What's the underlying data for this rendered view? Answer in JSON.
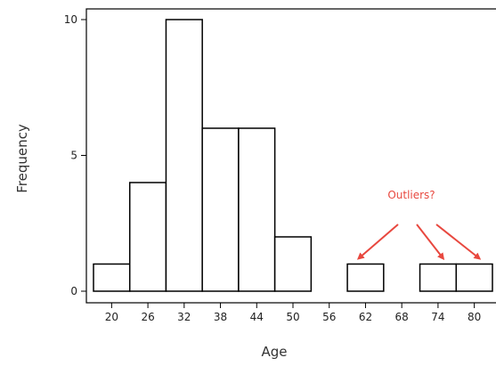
{
  "chart_data": {
    "type": "bar",
    "subtype": "histogram",
    "title": "",
    "xlabel": "Age",
    "ylabel": "Frequency",
    "bins": [
      {
        "start": 17,
        "end": 23,
        "count": 1
      },
      {
        "start": 23,
        "end": 29,
        "count": 4
      },
      {
        "start": 29,
        "end": 35,
        "count": 10
      },
      {
        "start": 35,
        "end": 41,
        "count": 6
      },
      {
        "start": 41,
        "end": 47,
        "count": 6
      },
      {
        "start": 47,
        "end": 53,
        "count": 2
      },
      {
        "start": 53,
        "end": 59,
        "count": 0
      },
      {
        "start": 59,
        "end": 65,
        "count": 1
      },
      {
        "start": 65,
        "end": 71,
        "count": 0
      },
      {
        "start": 71,
        "end": 77,
        "count": 1
      },
      {
        "start": 77,
        "end": 83,
        "count": 1
      }
    ],
    "x_ticks": [
      "20",
      "26",
      "32",
      "38",
      "44",
      "50",
      "56",
      "62",
      "68",
      "74",
      "80"
    ],
    "y_ticks": [
      "0",
      "5",
      "10"
    ],
    "xlim": [
      16,
      84
    ],
    "ylim": [
      0,
      10
    ],
    "grid": false,
    "annotation": {
      "text": "Outliers?",
      "color": "#e8483f",
      "points_to_bins": [
        7,
        9,
        10
      ]
    }
  }
}
